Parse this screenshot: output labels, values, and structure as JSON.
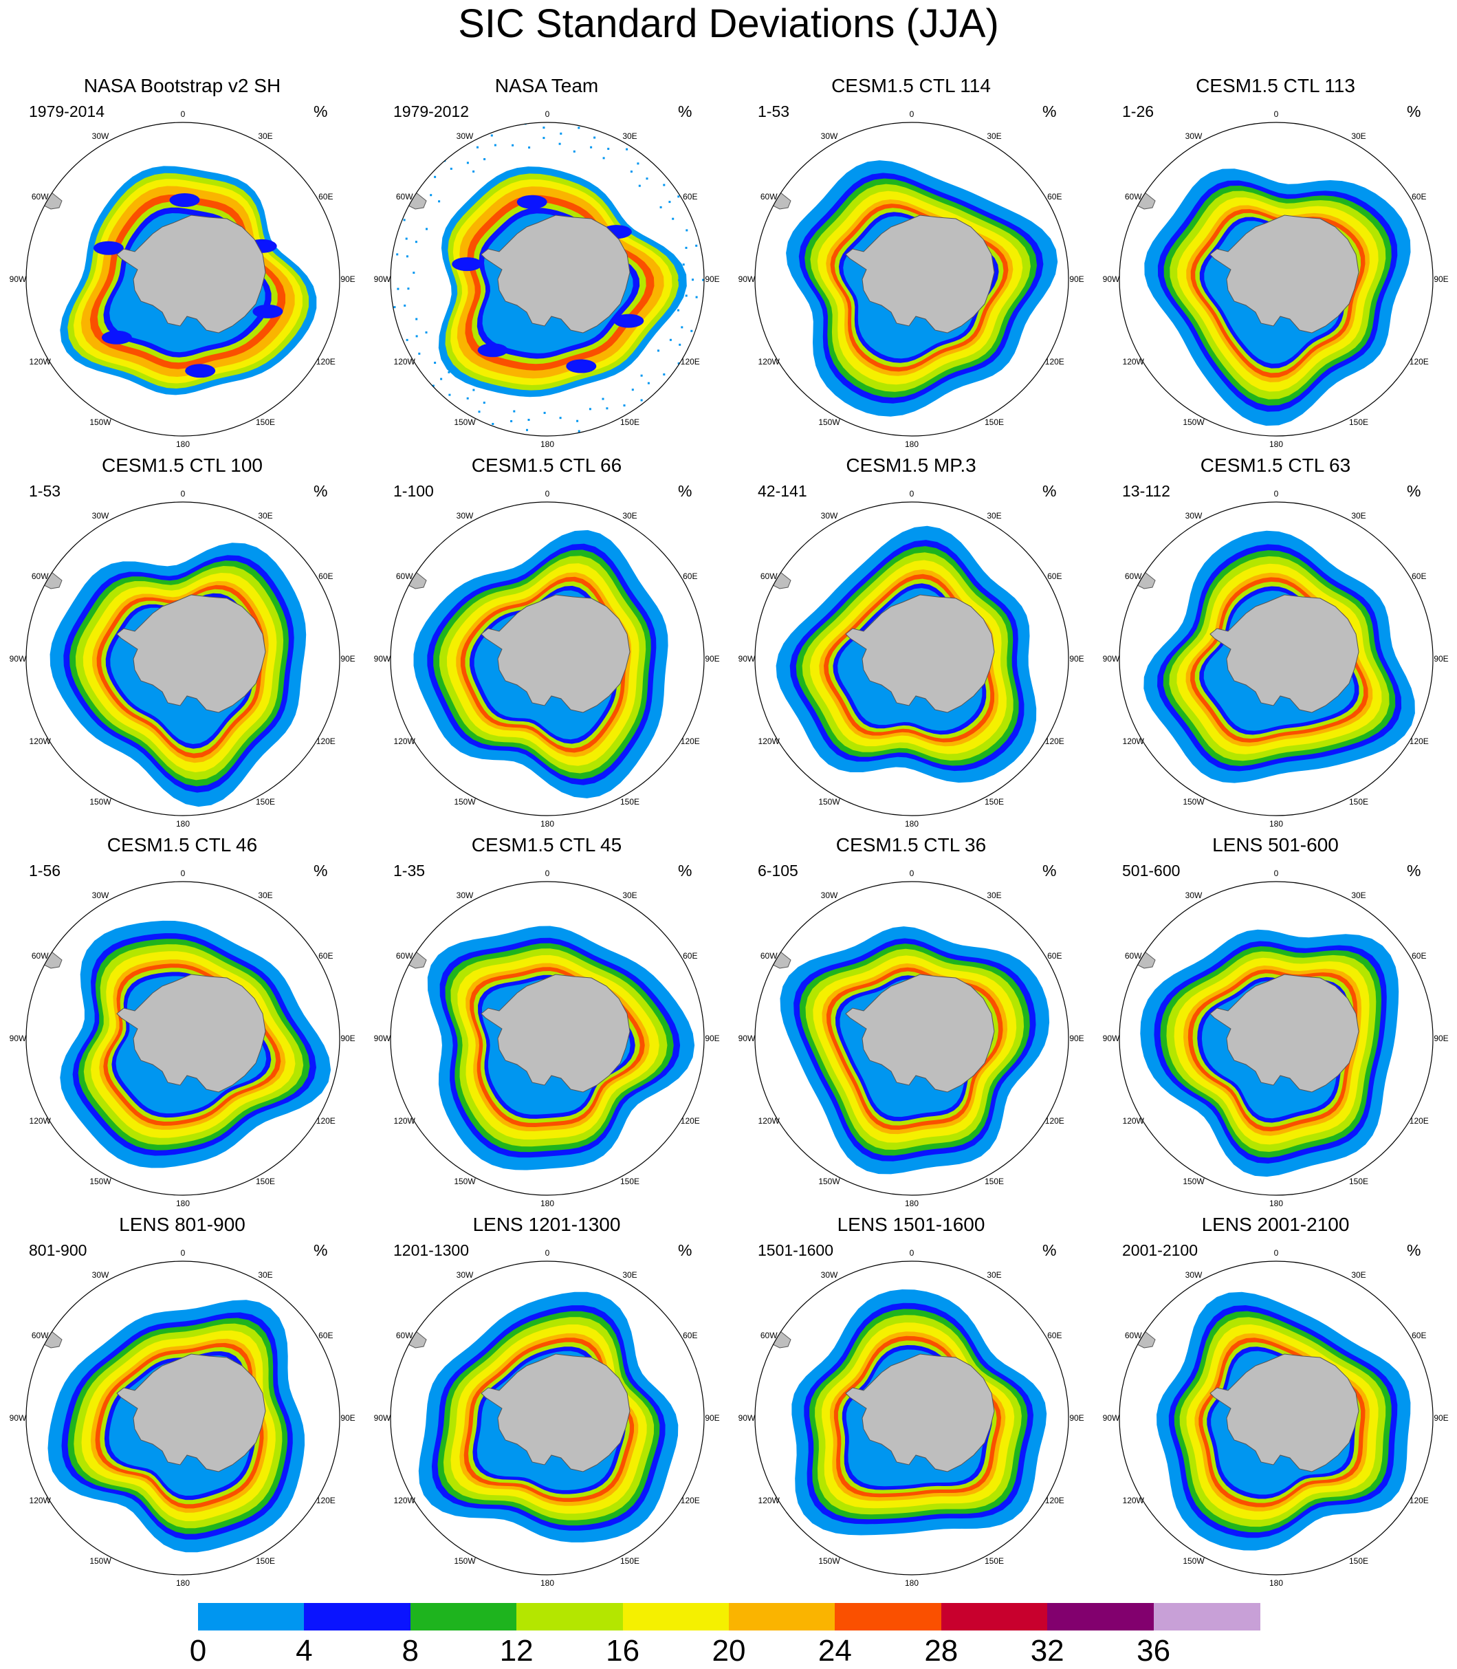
{
  "figure": {
    "title": "SIC Standard Deviations (JJA)",
    "unit": "%",
    "longitude_labels": [
      "0",
      "30E",
      "60E",
      "90E",
      "120E",
      "150E",
      "180",
      "150W",
      "120W",
      "90W",
      "60W",
      "30W"
    ]
  },
  "panels": [
    {
      "title": "NASA Bootstrap v2 SH",
      "range": "1979-2014",
      "variant": "obs_bootstrap"
    },
    {
      "title": "NASA Team",
      "range": "1979-2012",
      "variant": "obs_team"
    },
    {
      "title": "CESM1.5 CTL 114",
      "range": "1-53",
      "variant": "model"
    },
    {
      "title": "CESM1.5 CTL 113",
      "range": "1-26",
      "variant": "model"
    },
    {
      "title": "CESM1.5 CTL 100",
      "range": "1-53",
      "variant": "model"
    },
    {
      "title": "CESM1.5 CTL 66",
      "range": "1-100",
      "variant": "model"
    },
    {
      "title": "CESM1.5 MP.3",
      "range": "42-141",
      "variant": "model"
    },
    {
      "title": "CESM1.5 CTL 63",
      "range": "13-112",
      "variant": "model"
    },
    {
      "title": "CESM1.5 CTL 46",
      "range": "1-56",
      "variant": "model"
    },
    {
      "title": "CESM1.5 CTL 45",
      "range": "1-35",
      "variant": "model"
    },
    {
      "title": "CESM1.5 CTL 36",
      "range": "6-105",
      "variant": "model"
    },
    {
      "title": "LENS 501-600",
      "range": "501-600",
      "variant": "model"
    },
    {
      "title": "LENS 801-900",
      "range": "801-900",
      "variant": "model"
    },
    {
      "title": "LENS 1201-1300",
      "range": "1201-1300",
      "variant": "model"
    },
    {
      "title": "LENS 1501-1600",
      "range": "1501-1600",
      "variant": "model"
    },
    {
      "title": "LENS 2001-2100",
      "range": "2001-2100",
      "variant": "model"
    }
  ],
  "colorbar": {
    "labels": [
      "0",
      "4",
      "8",
      "12",
      "16",
      "20",
      "24",
      "28",
      "32",
      "36"
    ],
    "colors": [
      "#0096f0",
      "#0a14ff",
      "#1eb41e",
      "#b4e600",
      "#f5f000",
      "#fab400",
      "#fa5000",
      "#c8002d",
      "#82006e",
      "#c8a0d7"
    ]
  }
}
